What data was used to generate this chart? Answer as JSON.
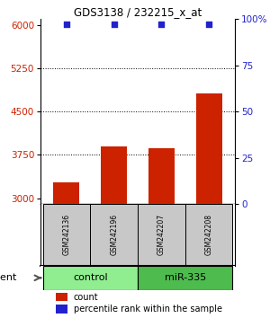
{
  "title": "GDS3138 / 232215_x_at",
  "samples": [
    "GSM242136",
    "GSM242196",
    "GSM242207",
    "GSM242208"
  ],
  "bar_values": [
    3280,
    3900,
    3860,
    4820
  ],
  "percentile_values": [
    97,
    97,
    97,
    97
  ],
  "bar_color": "#cc2200",
  "percentile_color": "#2222cc",
  "ylim_left": [
    2900,
    6100
  ],
  "ylim_right": [
    0,
    100
  ],
  "yticks_left": [
    3000,
    3750,
    4500,
    5250,
    6000
  ],
  "yticks_right": [
    0,
    25,
    50,
    75,
    100
  ],
  "ytick_labels_right": [
    "0",
    "25",
    "50",
    "75",
    "100%"
  ],
  "groups": [
    {
      "label": "control",
      "samples": [
        0,
        1
      ],
      "color": "#90ee90"
    },
    {
      "label": "miR-335",
      "samples": [
        2,
        3
      ],
      "color": "#4dbb4d"
    }
  ],
  "agent_label": "agent",
  "legend_count_label": "count",
  "legend_percentile_label": "percentile rank within the sample",
  "background_color": "#ffffff",
  "sample_box_color": "#c8c8c8",
  "bar_width": 0.55,
  "xlim": [
    -0.55,
    3.55
  ]
}
